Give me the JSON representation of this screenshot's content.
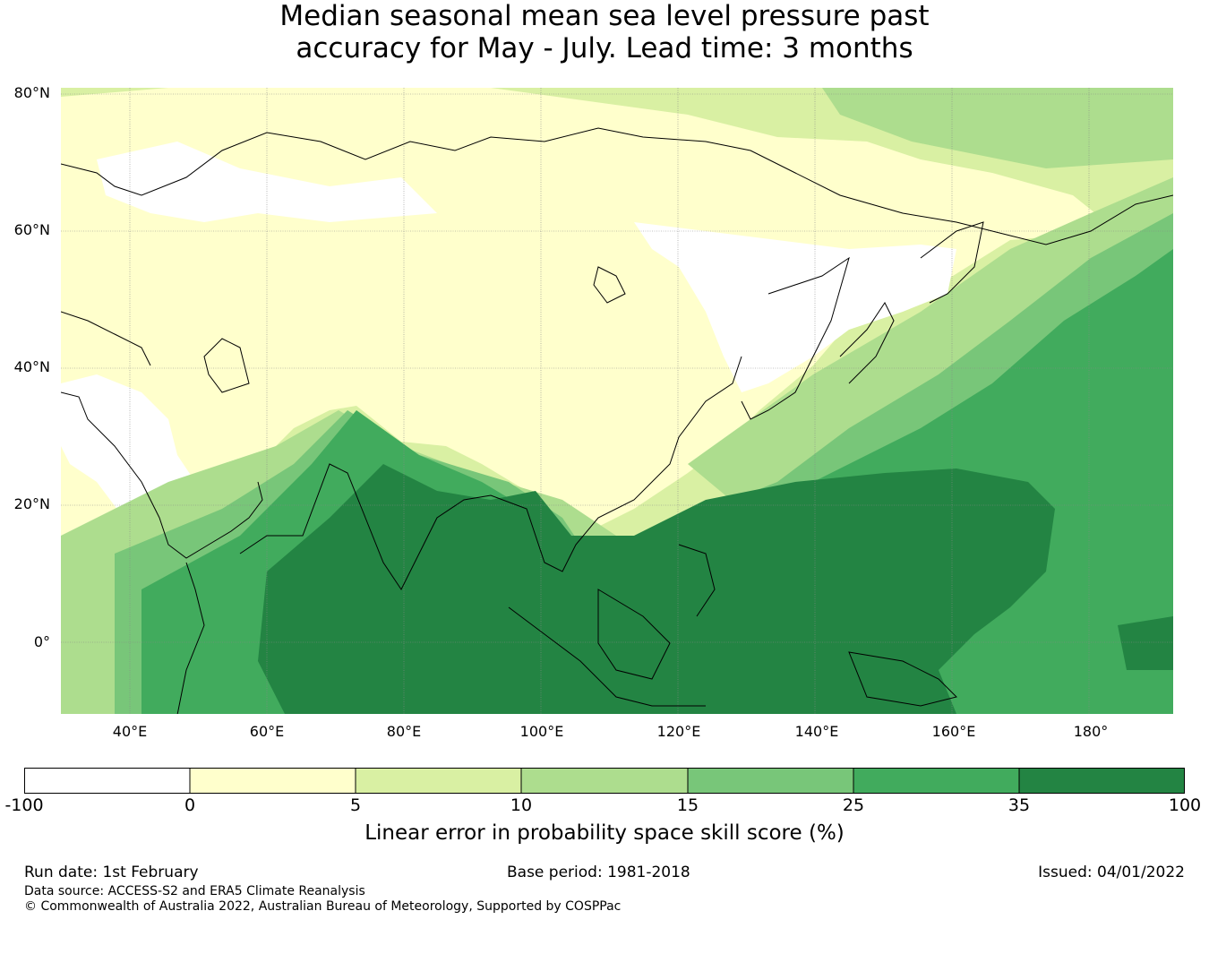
{
  "title": {
    "line1": "Median seasonal mean sea level pressure past",
    "line2": "accuracy for May - July. Lead time: 3 months"
  },
  "map": {
    "lat_labels": [
      "80°N",
      "60°N",
      "40°N",
      "20°N",
      "0°"
    ],
    "lon_labels": [
      "40°E",
      "60°E",
      "80°E",
      "100°E",
      "120°E",
      "140°E",
      "160°E",
      "180°"
    ]
  },
  "colorbar": {
    "ticks": [
      "-100",
      "0",
      "5",
      "10",
      "15",
      "25",
      "35",
      "100"
    ],
    "colors": [
      "#ffffff",
      "#ffffcc",
      "#d9f0a3",
      "#addd8e",
      "#78c679",
      "#41ab5d",
      "#238443"
    ],
    "label": "Linear error in probability space skill score (%)"
  },
  "footer": {
    "run_date": "Run date: 1st February",
    "base_period": "Base period: 1981-2018",
    "issued": "Issued: 04/01/2022",
    "data_source": "Data source: ACCESS-S2 and ERA5 Climate Reanalysis",
    "copyright": "© Commonwealth of Australia 2022, Australian Bureau of Meteorology, Supported by COSPPac"
  }
}
